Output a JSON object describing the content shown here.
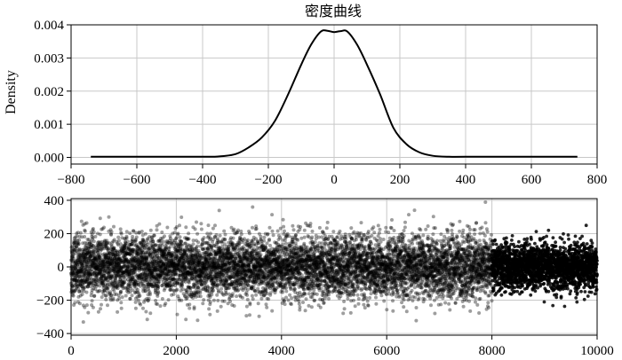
{
  "chart_data": [
    {
      "type": "line",
      "title": "密度曲线",
      "xlabel": "",
      "ylabel": "Density",
      "xlim": [
        -800,
        800
      ],
      "ylim": [
        -0.0002,
        0.004
      ],
      "x_ticks": [
        "−800",
        "−600",
        "−400",
        "−200",
        "0",
        "200",
        "400",
        "600",
        "800"
      ],
      "y_ticks": [
        "0.000",
        "0.001",
        "0.002",
        "0.003",
        "0.004"
      ],
      "x_tick_values": [
        -800,
        -600,
        -400,
        -200,
        0,
        200,
        400,
        600,
        800
      ],
      "y_tick_values": [
        0,
        0.001,
        0.002,
        0.003,
        0.004
      ],
      "grid": true,
      "line_color": "#000000",
      "x": [
        -740,
        -600,
        -400,
        -350,
        -300,
        -260,
        -220,
        -180,
        -140,
        -100,
        -70,
        -40,
        -20,
        0,
        20,
        40,
        70,
        100,
        140,
        180,
        220,
        260,
        300,
        350,
        400,
        600,
        740
      ],
      "y": [
        2e-05,
        2e-05,
        2e-05,
        3e-05,
        0.0001,
        0.0003,
        0.0006,
        0.0011,
        0.0019,
        0.0028,
        0.0034,
        0.0038,
        0.00382,
        0.00378,
        0.00381,
        0.0038,
        0.0034,
        0.0028,
        0.0019,
        0.0009,
        0.0004,
        0.00015,
        5e-05,
        2e-05,
        2e-05,
        2e-05,
        2e-05
      ]
    },
    {
      "type": "scatter",
      "title": "",
      "xlabel": "",
      "ylabel": "",
      "xlim": [
        0,
        10000
      ],
      "ylim": [
        -410,
        410
      ],
      "x_ticks": [
        "0",
        "2000",
        "4000",
        "6000",
        "8000",
        "10000"
      ],
      "y_ticks": [
        "−400",
        "−200",
        "0",
        "200",
        "400"
      ],
      "x_tick_values": [
        0,
        2000,
        4000,
        6000,
        8000,
        10000
      ],
      "y_tick_values": [
        -400,
        -200,
        0,
        200,
        400
      ],
      "grid": true,
      "n_points": 10000,
      "point_color": "#000000",
      "point_opacity_main": 0.38,
      "point_opacity_last": 0.85,
      "highlight_from_x": 8000,
      "spread_std_main": 95,
      "spread_std_last": 70,
      "max_abs": 400
    }
  ]
}
